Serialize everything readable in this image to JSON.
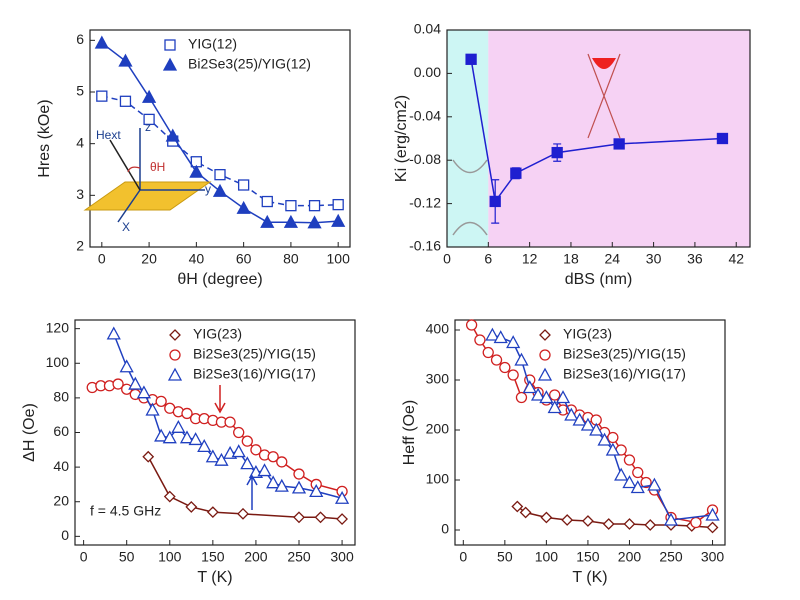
{
  "chart_data": [
    {
      "type": "scatter",
      "x_label": "θH (degree)",
      "y_label": "Hres (kOe)",
      "xlim": [
        -5,
        105
      ],
      "ylim": [
        2,
        6.2
      ],
      "xticks": [
        0,
        20,
        40,
        60,
        80,
        100
      ],
      "yticks": [
        2,
        3,
        4,
        5,
        6
      ],
      "legend": "upper right",
      "x": [
        0,
        10,
        20,
        30,
        40,
        50,
        60,
        70,
        80,
        90,
        100
      ],
      "series": [
        {
          "name": "YIG(12)",
          "color": "#1f3fbf",
          "marker": "square-open",
          "line": "dashed",
          "values": [
            4.92,
            4.82,
            4.47,
            4.05,
            3.65,
            3.4,
            3.2,
            2.88,
            2.8,
            2.8,
            2.82
          ]
        },
        {
          "name": "Bi2Se3(25)/YIG(12)",
          "color": "#1f3fbf",
          "marker": "triangle",
          "line": "solid",
          "values": [
            5.95,
            5.6,
            4.9,
            4.15,
            3.45,
            3.08,
            2.75,
            2.48,
            2.48,
            2.47,
            2.5
          ]
        }
      ],
      "annotations": [
        "Hext",
        "z",
        "θH",
        "y",
        "X"
      ]
    },
    {
      "type": "scatter",
      "x_label": "dBS (nm)",
      "y_label": "Ki (erg/cm2)",
      "xlim": [
        0,
        44
      ],
      "ylim": [
        -0.16,
        0.04
      ],
      "xticks": [
        0,
        6,
        12,
        18,
        24,
        30,
        36,
        42
      ],
      "yticks": [
        -0.16,
        -0.12,
        -0.08,
        -0.04,
        {
          "value": 0,
          "label": "0.00"
        },
        0.04
      ],
      "shaded_regions": [
        {
          "xlim": [
            0,
            6
          ],
          "color": "#cdf6f4"
        },
        {
          "xlim": [
            6,
            44
          ],
          "color": "#f6d2f4"
        }
      ],
      "x": [
        3.5,
        7,
        10,
        16,
        25,
        40
      ],
      "series": [
        {
          "color": "#1f1fd0",
          "marker": "square",
          "line": "solid",
          "values": [
            0.013,
            -0.118,
            -0.092,
            -0.073,
            -0.065,
            -0.06
          ],
          "errors": [
            null,
            0.02,
            0.005,
            0.008,
            null,
            null
          ]
        }
      ]
    },
    {
      "type": "scatter",
      "x_label": "T (K)",
      "y_label": "ΔH (Oe)",
      "xlim": [
        -10,
        315
      ],
      "ylim": [
        -5,
        125
      ],
      "xticks": [
        0,
        50,
        100,
        150,
        200,
        250,
        300
      ],
      "yticks": [
        0,
        20,
        40,
        60,
        80,
        100,
        120
      ],
      "legend": "upper right",
      "series": [
        {
          "name": "YIG(23)",
          "color": "#7a1a12",
          "marker": "diamond-open",
          "line": "solid",
          "x": [
            75,
            100,
            125,
            150,
            185,
            250,
            275,
            300
          ],
          "values": [
            46,
            23,
            17,
            14,
            13,
            11,
            11,
            10
          ]
        },
        {
          "name": "Bi2Se3(25)/YIG(15)",
          "color": "#d02020",
          "marker": "circle-open",
          "line": "solid",
          "x": [
            10,
            20,
            30,
            40,
            50,
            60,
            70,
            80,
            90,
            100,
            110,
            120,
            130,
            140,
            150,
            160,
            170,
            180,
            190,
            200,
            210,
            220,
            230,
            250,
            270,
            300
          ],
          "values": [
            86,
            87,
            87,
            88,
            85,
            82,
            80,
            79,
            78,
            74,
            72,
            71,
            68,
            68,
            67,
            66,
            66,
            60,
            55,
            50,
            47,
            46,
            43,
            36,
            30,
            26
          ]
        },
        {
          "name": "Bi2Se3(16)/YIG(17)",
          "color": "#2040c0",
          "marker": "triangle-open",
          "line": "solid",
          "x": [
            35,
            50,
            60,
            70,
            80,
            90,
            100,
            110,
            120,
            130,
            140,
            150,
            160,
            170,
            180,
            190,
            200,
            210,
            220,
            230,
            250,
            270,
            300
          ],
          "values": [
            117,
            98,
            88,
            83,
            73,
            58,
            57,
            63,
            57,
            56,
            52,
            46,
            44,
            48,
            49,
            42,
            37,
            38,
            31,
            29,
            28,
            26,
            22
          ]
        }
      ],
      "annotations": [
        "f = 4.5 GHz"
      ]
    },
    {
      "type": "scatter",
      "x_label": "T (K)",
      "y_label": "Heff (Oe)",
      "xlim": [
        -10,
        315
      ],
      "ylim": [
        -30,
        420
      ],
      "xticks": [
        0,
        50,
        100,
        150,
        200,
        250,
        300
      ],
      "yticks": [
        0,
        100,
        200,
        300,
        400
      ],
      "legend": "upper right",
      "series": [
        {
          "name": "YIG(23)",
          "color": "#7a1a12",
          "marker": "diamond-open",
          "line": "solid",
          "x": [
            65,
            75,
            100,
            125,
            150,
            175,
            200,
            225,
            250,
            275,
            300
          ],
          "values": [
            47,
            35,
            25,
            20,
            18,
            12,
            12,
            10,
            10,
            8,
            5
          ]
        },
        {
          "name": "Bi2Se3(25)/YIG(15)",
          "color": "#d02020",
          "marker": "circle-open",
          "line": "solid",
          "x": [
            10,
            20,
            30,
            40,
            50,
            60,
            70,
            80,
            90,
            100,
            110,
            120,
            130,
            140,
            150,
            160,
            170,
            180,
            190,
            200,
            210,
            220,
            230,
            250,
            280,
            300
          ],
          "values": [
            410,
            380,
            355,
            340,
            325,
            310,
            265,
            300,
            275,
            260,
            270,
            240,
            240,
            230,
            225,
            220,
            195,
            185,
            160,
            140,
            115,
            95,
            80,
            25,
            15,
            40
          ]
        },
        {
          "name": "Bi2Se3(16)/YIG(17)",
          "color": "#2040c0",
          "marker": "triangle-open",
          "line": "solid",
          "x": [
            35,
            45,
            60,
            70,
            80,
            90,
            100,
            110,
            120,
            130,
            140,
            150,
            160,
            170,
            180,
            190,
            200,
            210,
            230,
            250,
            300
          ],
          "values": [
            390,
            385,
            375,
            340,
            285,
            270,
            265,
            245,
            265,
            230,
            220,
            210,
            200,
            180,
            160,
            110,
            95,
            85,
            90,
            20,
            30
          ]
        }
      ]
    }
  ]
}
